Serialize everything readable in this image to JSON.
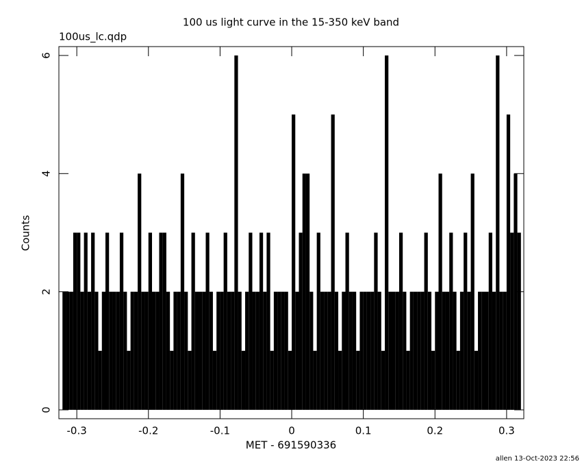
{
  "chart_data": {
    "type": "histogram",
    "title": "100 us light curve in the 15-350 keV band",
    "subtitle": "100us_lc.qdp",
    "x_label": "MET - 691590336",
    "y_label": "Counts",
    "footer": "allen 13-Oct-2023 22:56",
    "color": "#000000",
    "bins": [
      -0.32,
      -0.315,
      -0.31,
      -0.305,
      -0.3,
      -0.295,
      -0.29,
      -0.285,
      -0.28,
      -0.275,
      -0.27,
      -0.265,
      -0.26,
      -0.255,
      -0.25,
      -0.245,
      -0.24,
      -0.235,
      -0.23,
      -0.225,
      -0.22,
      -0.215,
      -0.21,
      -0.205,
      -0.2,
      -0.195,
      -0.19,
      -0.185,
      -0.18,
      -0.175,
      -0.17,
      -0.165,
      -0.16,
      -0.155,
      -0.15,
      -0.145,
      -0.14,
      -0.135,
      -0.13,
      -0.125,
      -0.12,
      -0.115,
      -0.11,
      -0.105,
      -0.1,
      -0.095,
      -0.09,
      -0.085,
      -0.08,
      -0.075,
      -0.07,
      -0.065,
      -0.06,
      -0.055,
      -0.05,
      -0.045,
      -0.04,
      -0.035,
      -0.03,
      -0.025,
      -0.02,
      -0.015,
      -0.01,
      -0.005,
      0,
      0.005,
      0.01,
      0.015,
      0.02,
      0.025,
      0.03,
      0.035,
      0.04,
      0.045,
      0.05,
      0.055,
      0.06,
      0.065,
      0.07,
      0.075,
      0.08,
      0.085,
      0.09,
      0.095,
      0.1,
      0.105,
      0.11,
      0.115,
      0.12,
      0.125,
      0.13,
      0.135,
      0.14,
      0.145,
      0.15,
      0.155,
      0.16,
      0.165,
      0.17,
      0.175,
      0.18,
      0.185,
      0.19,
      0.195,
      0.2,
      0.205,
      0.21,
      0.215,
      0.22,
      0.225,
      0.23,
      0.235,
      0.24,
      0.245,
      0.25,
      0.255,
      0.26,
      0.265,
      0.27,
      0.275,
      0.28,
      0.285,
      0.29,
      0.295,
      0.3,
      0.305,
      0.31,
      0.315,
      0.32
    ],
    "values": [
      2,
      2,
      2,
      3,
      3,
      2,
      3,
      2,
      3,
      2,
      1,
      2,
      3,
      2,
      2,
      2,
      3,
      2,
      1,
      2,
      2,
      4,
      2,
      2,
      3,
      2,
      2,
      3,
      3,
      2,
      1,
      2,
      2,
      4,
      2,
      1,
      3,
      2,
      2,
      2,
      3,
      2,
      1,
      2,
      2,
      3,
      2,
      2,
      6,
      2,
      1,
      2,
      3,
      2,
      2,
      3,
      2,
      3,
      1,
      2,
      2,
      2,
      2,
      1,
      5,
      2,
      3,
      4,
      4,
      2,
      1,
      3,
      2,
      2,
      2,
      5,
      2,
      1,
      2,
      3,
      2,
      2,
      1,
      2,
      2,
      2,
      2,
      3,
      2,
      1,
      6,
      2,
      2,
      2,
      3,
      2,
      1,
      2,
      2,
      2,
      2,
      3,
      2,
      1,
      2,
      4,
      2,
      2,
      3,
      2,
      1,
      2,
      3,
      2,
      4,
      1,
      2,
      2,
      2,
      3,
      2,
      6,
      2,
      2,
      5,
      3,
      4,
      3
    ],
    "xlim": [
      -0.325,
      0.324
    ],
    "ylim": [
      -0.15,
      6.15
    ],
    "xticks": [
      -0.3,
      -0.2,
      -0.1,
      0,
      0.1,
      0.2,
      0.3
    ],
    "yticks": [
      0,
      2,
      4,
      6
    ]
  }
}
